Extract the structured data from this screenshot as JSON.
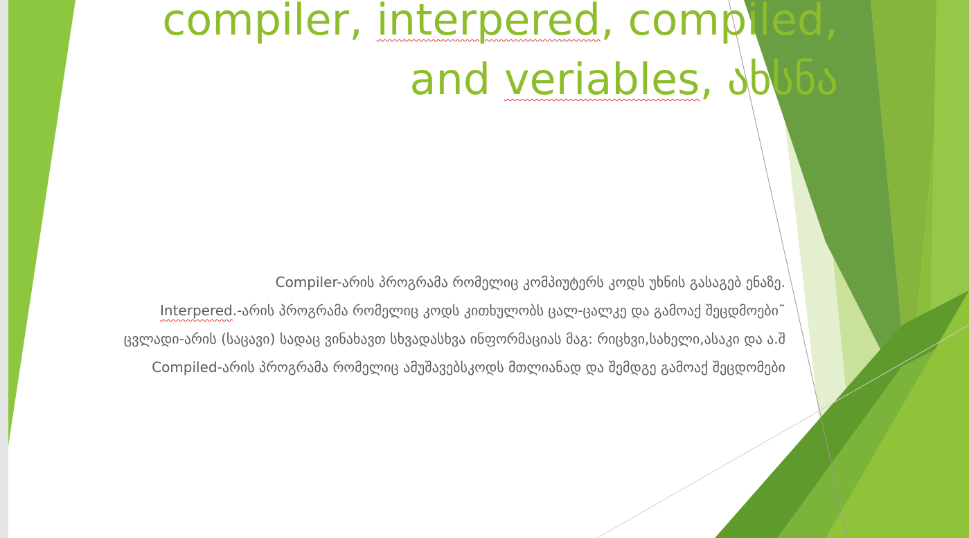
{
  "slide": {
    "title_line1": {
      "part1": "compiler, ",
      "part2": "interpered",
      "part3": ", compiled,"
    },
    "title_line2": {
      "part1": "and ",
      "part2": "veriables",
      "part3": ", ახსნა"
    },
    "definitions": [
      {
        "term": "Compiler",
        "text": "-არის პროგრამა რომელიც კომპიუტერს კოდს უხნის გასაგებ ენაზე."
      },
      {
        "term": "Interpered",
        "text": ".-არის პროგრამა რომელიც კოდს კითხულობს ცალ-ცალკე და გამოაქ შეცდმოები˜"
      },
      {
        "term": "",
        "text": "ცვლადი-არის (საცავი) სადაც ვინახავთ სხვადასხვა ინფორმაციას მაგ: რიცხვი,სახელი,ასაკი და ა.შ"
      },
      {
        "term": "Compiled",
        "text": "-არის პროგრამა რომელიც ამუშავებსკოდს მთლიანად და შემდგე გამოაქ შეცდომები"
      }
    ]
  },
  "colors": {
    "accent": "#8dbd2a",
    "text": "#5c5c5c",
    "dark_green": "#4c8a1f",
    "light_green": "#c8e39a"
  }
}
